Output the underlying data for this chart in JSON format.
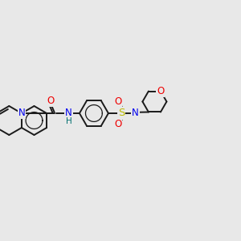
{
  "bg_color": "#e8e8e8",
  "bond_color": "#1a1a1a",
  "bond_width": 1.4,
  "atom_colors": {
    "N": "#0000ee",
    "O": "#ee0000",
    "S": "#bbbb00",
    "H": "#007070"
  },
  "font_size": 8.5,
  "figsize": [
    3.0,
    3.0
  ],
  "dpi": 100,
  "xlim": [
    0,
    12
  ],
  "ylim": [
    2,
    9
  ]
}
